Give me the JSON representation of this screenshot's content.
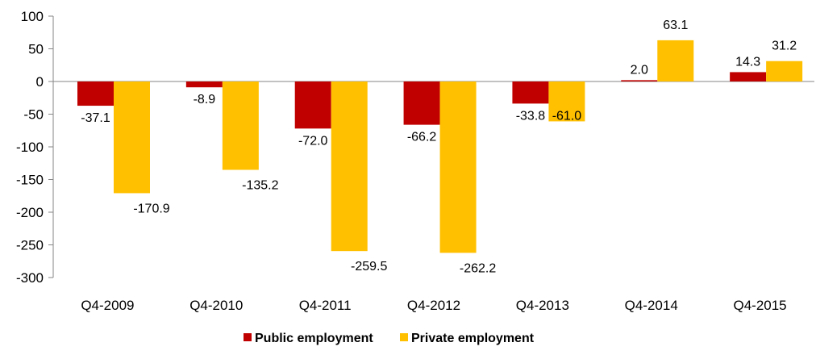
{
  "chart_data": {
    "type": "bar",
    "title": "",
    "xlabel": "",
    "ylabel": "",
    "categories": [
      "Q4-2009",
      "Q4-2010",
      "Q4-2011",
      "Q4-2012",
      "Q4-2013",
      "Q4-2014",
      "Q4-2015"
    ],
    "series": [
      {
        "name": "Public employment",
        "color": "#C00000",
        "values": [
          -37.1,
          -8.9,
          -72.0,
          -66.2,
          -33.8,
          2.0,
          14.3
        ],
        "labels": [
          "-37.1",
          "-8.9",
          "-72.0",
          "-66.2",
          "-33.8",
          "2.0",
          "14.3"
        ]
      },
      {
        "name": "Private employment",
        "color": "#FFC000",
        "values": [
          -170.9,
          -135.2,
          -259.5,
          -262.2,
          -61.0,
          63.1,
          31.2
        ],
        "labels": [
          "-170.9",
          "-135.2",
          "-259.5",
          "-262.2",
          "-61.0",
          "63.1",
          "31.2"
        ]
      }
    ],
    "ylim": [
      -300,
      100
    ],
    "yticks": [
      100,
      50,
      0,
      -50,
      -100,
      -150,
      -200,
      -250,
      -300
    ],
    "grid": false,
    "legend_position": "bottom"
  }
}
